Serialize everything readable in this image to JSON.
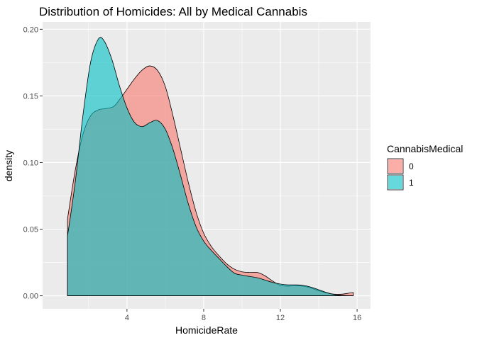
{
  "chart_data": {
    "type": "area",
    "title": "Distribution of Homicides: All by Medical Cannabis",
    "xlabel": "HomicideRate",
    "ylabel": "density",
    "xlim": [
      -0.4,
      16.7
    ],
    "ylim": [
      -0.0098,
      0.2055
    ],
    "x_ticks": [
      4,
      8,
      12,
      16
    ],
    "x_tick_labels": [
      "4",
      "8",
      "12",
      "16"
    ],
    "y_ticks": [
      0,
      0.05,
      0.1,
      0.15,
      0.2
    ],
    "y_tick_labels": [
      "0.00",
      "0.05",
      "0.10",
      "0.15",
      "0.20"
    ],
    "grid": true,
    "legend": {
      "title": "CannabisMedical",
      "position": "right"
    },
    "series": [
      {
        "name": "0",
        "fill": "#F8766D",
        "points": [
          [
            0.9,
            0.0578
          ],
          [
            1.3,
            0.094
          ],
          [
            1.7,
            0.121
          ],
          [
            2.1,
            0.135
          ],
          [
            2.5,
            0.1395
          ],
          [
            2.9,
            0.1405
          ],
          [
            3.3,
            0.142
          ],
          [
            3.6,
            0.147
          ],
          [
            4.0,
            0.155
          ],
          [
            4.4,
            0.163
          ],
          [
            4.8,
            0.1695
          ],
          [
            5.2,
            0.1725
          ],
          [
            5.6,
            0.169
          ],
          [
            6.0,
            0.157
          ],
          [
            6.4,
            0.135
          ],
          [
            6.8,
            0.11
          ],
          [
            7.2,
            0.085
          ],
          [
            7.6,
            0.063
          ],
          [
            8.0,
            0.047
          ],
          [
            8.4,
            0.037
          ],
          [
            8.8,
            0.03
          ],
          [
            9.2,
            0.024
          ],
          [
            9.6,
            0.02
          ],
          [
            10.0,
            0.018
          ],
          [
            10.4,
            0.0175
          ],
          [
            10.8,
            0.0175
          ],
          [
            11.2,
            0.015
          ],
          [
            11.6,
            0.011
          ],
          [
            12.0,
            0.0078
          ],
          [
            12.4,
            0.0073
          ],
          [
            12.8,
            0.0075
          ],
          [
            13.2,
            0.0072
          ],
          [
            13.6,
            0.0058
          ],
          [
            14.0,
            0.0038
          ],
          [
            14.4,
            0.0022
          ],
          [
            14.8,
            0.0012
          ],
          [
            15.2,
            0.0012
          ],
          [
            15.5,
            0.0018
          ],
          [
            15.8,
            0.0025
          ]
        ]
      },
      {
        "name": "1",
        "fill": "#00BFC4",
        "points": [
          [
            0.9,
            0.0448
          ],
          [
            1.3,
            0.085
          ],
          [
            1.7,
            0.135
          ],
          [
            2.1,
            0.175
          ],
          [
            2.5,
            0.1925
          ],
          [
            2.8,
            0.1915
          ],
          [
            3.2,
            0.178
          ],
          [
            3.6,
            0.158
          ],
          [
            4.0,
            0.141
          ],
          [
            4.4,
            0.13
          ],
          [
            4.8,
            0.127
          ],
          [
            5.2,
            0.13
          ],
          [
            5.6,
            0.1315
          ],
          [
            6.0,
            0.125
          ],
          [
            6.4,
            0.11
          ],
          [
            6.8,
            0.09
          ],
          [
            7.2,
            0.069
          ],
          [
            7.6,
            0.052
          ],
          [
            8.0,
            0.041
          ],
          [
            8.4,
            0.034
          ],
          [
            8.8,
            0.028
          ],
          [
            9.2,
            0.022
          ],
          [
            9.6,
            0.017
          ],
          [
            10.0,
            0.0155
          ],
          [
            10.4,
            0.0145
          ],
          [
            10.8,
            0.0135
          ],
          [
            11.2,
            0.0118
          ],
          [
            11.6,
            0.01
          ],
          [
            12.0,
            0.0088
          ],
          [
            12.4,
            0.0082
          ],
          [
            12.8,
            0.0082
          ],
          [
            13.2,
            0.0078
          ],
          [
            13.6,
            0.0065
          ],
          [
            14.0,
            0.0045
          ],
          [
            14.4,
            0.0025
          ],
          [
            14.8,
            0.001
          ],
          [
            15.2,
            0.0003
          ],
          [
            15.5,
            0.0001
          ],
          [
            15.8,
            0.0
          ]
        ]
      }
    ]
  }
}
